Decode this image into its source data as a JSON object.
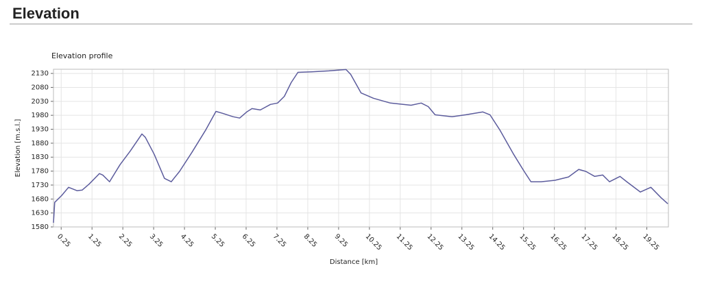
{
  "header": {
    "title": "Elevation"
  },
  "chart_data": {
    "type": "line",
    "title": "Elevation profile",
    "xlabel": "Distance [km]",
    "ylabel": "Elevation [m.s.l.]",
    "color": "#5b5b9c",
    "grid": true,
    "x": [
      0,
      0.04,
      0.27,
      0.49,
      0.76,
      0.93,
      1.16,
      1.49,
      1.6,
      1.82,
      2.16,
      2.49,
      2.87,
      2.98,
      3.27,
      3.6,
      3.82,
      4.09,
      4.49,
      4.93,
      5.27,
      5.49,
      5.82,
      6.04,
      6.27,
      6.44,
      6.71,
      7.04,
      7.27,
      7.49,
      7.71,
      7.93,
      8.38,
      8.93,
      9.49,
      9.64,
      9.98,
      10.38,
      10.93,
      11.6,
      11.93,
      12.16,
      12.38,
      12.93,
      13.38,
      13.93,
      14.16,
      14.49,
      14.93,
      15.27,
      15.49,
      15.82,
      16.27,
      16.71,
      17.04,
      17.27,
      17.56,
      17.82,
      18.04,
      18.38,
      18.6,
      19.04,
      19.38,
      19.71,
      19.93
    ],
    "values": [
      1595,
      1668,
      1693,
      1722,
      1710,
      1712,
      1734,
      1771,
      1766,
      1742,
      1803,
      1852,
      1913,
      1901,
      1840,
      1754,
      1742,
      1779,
      1847,
      1926,
      1994,
      1987,
      1975,
      1970,
      1992,
      2004,
      1999,
      2019,
      2024,
      2048,
      2097,
      2134,
      2136,
      2139,
      2144,
      2127,
      2060,
      2041,
      2024,
      2016,
      2024,
      2011,
      1982,
      1975,
      1982,
      1992,
      1982,
      1926,
      1840,
      1779,
      1742,
      1742,
      1747,
      1759,
      1786,
      1779,
      1761,
      1766,
      1742,
      1761,
      1742,
      1705,
      1722,
      1685,
      1663
    ],
    "xlim": [
      0,
      19.95
    ],
    "ylim": [
      1580,
      2145
    ],
    "xticks": [
      0.25,
      1.25,
      2.25,
      3.25,
      4.25,
      5.25,
      6.25,
      7.25,
      8.25,
      9.25,
      10.25,
      11.25,
      12.25,
      13.25,
      14.25,
      15.25,
      16.25,
      17.25,
      18.25,
      19.25
    ],
    "yticks": [
      1580,
      1630,
      1680,
      1730,
      1780,
      1830,
      1880,
      1930,
      1980,
      2030,
      2080,
      2130
    ]
  }
}
